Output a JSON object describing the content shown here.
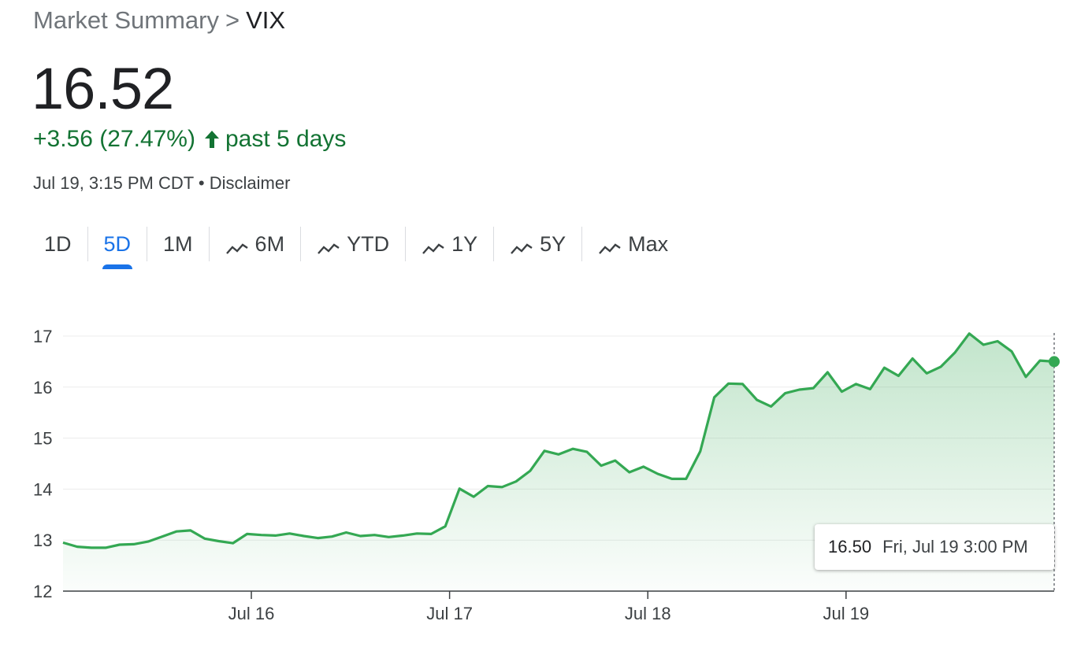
{
  "breadcrumb": {
    "parent": "Market Summary",
    "separator": ">",
    "current": "VIX"
  },
  "quote": {
    "price": "16.52",
    "change": "+3.56 (27.47%)",
    "period": "past 5 days",
    "timestamp": "Jul 19, 3:15 PM CDT",
    "dot": "•",
    "disclaimer": "Disclaimer"
  },
  "tabs": [
    {
      "label": "1D",
      "icon": "none",
      "active": false
    },
    {
      "label": "5D",
      "icon": "none",
      "active": true
    },
    {
      "label": "1M",
      "icon": "none",
      "active": false
    },
    {
      "label": "6M",
      "icon": "trend-icon",
      "active": false
    },
    {
      "label": "YTD",
      "icon": "trend-icon",
      "active": false
    },
    {
      "label": "1Y",
      "icon": "trend-icon",
      "active": false
    },
    {
      "label": "5Y",
      "icon": "trend-icon",
      "active": false
    },
    {
      "label": "Max",
      "icon": "trend-icon",
      "active": false
    }
  ],
  "colors": {
    "up": "#137333",
    "line": "#34a853",
    "active_tab": "#1a73e8",
    "muted": "#70757a"
  },
  "tooltip": {
    "value": "16.50",
    "date": "Fri, Jul 19 3:00 PM"
  },
  "chart_data": {
    "type": "area",
    "x_range": [
      0,
      100
    ],
    "ylim": [
      12,
      17
    ],
    "yticks": [
      12,
      13,
      14,
      15,
      16,
      17
    ],
    "xticks": [
      {
        "x": 19,
        "label": "Jul 16"
      },
      {
        "x": 39,
        "label": "Jul 17"
      },
      {
        "x": 59,
        "label": "Jul 18"
      },
      {
        "x": 79,
        "label": "Jul 19"
      }
    ],
    "grid": true,
    "x": [
      0,
      1.43,
      2.86,
      4.29,
      5.71,
      7.14,
      8.57,
      10,
      11.43,
      12.86,
      14.29,
      15.71,
      17.14,
      18.57,
      20,
      21.43,
      22.86,
      24.29,
      25.71,
      27.14,
      28.57,
      30,
      31.43,
      32.86,
      34.29,
      35.71,
      37.14,
      38.57,
      40,
      41.43,
      42.86,
      44.29,
      45.71,
      47.14,
      48.57,
      50,
      51.43,
      52.86,
      54.29,
      55.71,
      57.14,
      58.57,
      60,
      61.43,
      62.86,
      64.29,
      65.71,
      67.14,
      68.57,
      70,
      71.43,
      72.86,
      74.29,
      75.71,
      77.14,
      78.57,
      80,
      81.43,
      82.86,
      84.29,
      85.71,
      87.14,
      88.57,
      90,
      91.43,
      92.86,
      94.29,
      95.71,
      97.14,
      98.57,
      100
    ],
    "y": [
      12.95,
      12.87,
      12.85,
      12.85,
      12.91,
      12.92,
      12.97,
      13.07,
      13.17,
      13.19,
      13.03,
      12.98,
      12.94,
      13.12,
      13.1,
      13.09,
      13.13,
      13.08,
      13.04,
      13.07,
      13.15,
      13.08,
      13.1,
      13.06,
      13.09,
      13.13,
      13.12,
      13.27,
      14.01,
      13.85,
      14.06,
      14.04,
      14.15,
      14.36,
      14.75,
      14.68,
      14.79,
      14.73,
      14.46,
      14.56,
      14.33,
      14.44,
      14.3,
      14.2,
      14.2,
      14.74,
      15.8,
      16.07,
      16.06,
      15.75,
      15.62,
      15.88,
      15.95,
      15.98,
      16.29,
      15.91,
      16.06,
      15.96,
      16.38,
      16.22,
      16.56,
      16.27,
      16.4,
      16.68,
      17.05,
      16.83,
      16.9,
      16.7,
      16.2,
      16.52,
      16.5
    ],
    "last_point": {
      "x": 100,
      "y": 16.5
    }
  }
}
